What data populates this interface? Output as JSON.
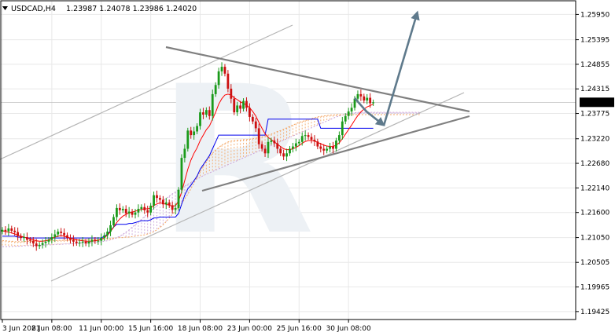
{
  "header": {
    "symbol": "USDCAD,H4",
    "ohlc": "1.23987 1.24078 1.23986 1.24020"
  },
  "watermark": "R",
  "colors": {
    "background": "#ffffff",
    "grid": "#e8e8e8",
    "candle_up": "#1a9a1a",
    "candle_down": "#cc1010",
    "tenkan": "#ff0000",
    "kijun": "#0000ee",
    "cloud_orange": "#f4a460",
    "cloud_purple": "#c8a0d8",
    "channel": "#b4b4b4",
    "triangle": "#808080",
    "arrow": "#5f7a8c",
    "price_tag_bg": "#000000",
    "price_tag_fg": "#ffffff"
  },
  "chart_data": {
    "type": "candlestick",
    "symbol": "USDCAD",
    "timeframe": "H4",
    "ylim": [
      1.1925,
      1.2625
    ],
    "y_ticks": [
      "1.25950",
      "1.25395",
      "1.24855",
      "1.24315",
      "1.23775",
      "1.23220",
      "1.22680",
      "1.22140",
      "1.21600",
      "1.21050",
      "1.20505",
      "1.19965",
      "1.19425"
    ],
    "current_price": "1.24020",
    "x_labels": [
      "3 Jun 2021",
      "8 Jun 08:00",
      "11 Jun 00:00",
      "15 Jun 16:00",
      "18 Jun 08:00",
      "23 Jun 00:00",
      "25 Jun 16:00",
      "30 Jun 08:00"
    ],
    "bars_per_label": 16,
    "close": [
      1.2122,
      1.2119,
      1.2125,
      1.212,
      1.2117,
      1.2108,
      1.2104,
      1.2106,
      1.21,
      1.2098,
      1.2092,
      1.2086,
      1.2089,
      1.2093,
      1.2096,
      1.21,
      1.2106,
      1.2112,
      1.2118,
      1.2115,
      1.211,
      1.2104,
      1.21,
      1.2096,
      1.2093,
      1.2094,
      1.2096,
      1.2092,
      1.2096,
      1.21,
      1.2097,
      1.2098,
      1.2104,
      1.211,
      1.2118,
      1.2132,
      1.215,
      1.217,
      1.2165,
      1.2168,
      1.2158,
      1.2162,
      1.2155,
      1.216,
      1.2168,
      1.2172,
      1.2165,
      1.216,
      1.2175,
      1.2198,
      1.2192,
      1.2188,
      1.2178,
      1.2182,
      1.2176,
      1.2166,
      1.217,
      1.221,
      1.228,
      1.23,
      1.234,
      1.233,
      1.2338,
      1.235,
      1.238,
      1.2375,
      1.2385,
      1.2372,
      1.242,
      1.244,
      1.247,
      1.248,
      1.2465,
      1.2432,
      1.241,
      1.238,
      1.2395,
      1.2388,
      1.2405,
      1.239,
      1.237,
      1.236,
      1.2345,
      1.231,
      1.23,
      1.229,
      1.2315,
      1.2318,
      1.2312,
      1.23,
      1.229,
      1.2283,
      1.229,
      1.23,
      1.2305,
      1.2312,
      1.2315,
      1.2328,
      1.233,
      1.2326,
      1.232,
      1.2316,
      1.2305,
      1.23,
      1.2296,
      1.23,
      1.2305,
      1.23,
      1.2318,
      1.233,
      1.236,
      1.2372,
      1.2382,
      1.239,
      1.241,
      1.242,
      1.2415,
      1.2406,
      1.2412,
      1.24,
      1.2402
    ],
    "tenkan_sen": [
      1.212,
      1.2118,
      1.2117,
      1.2115,
      1.2113,
      1.211,
      1.2108,
      1.2106,
      1.2104,
      1.2102,
      1.21,
      1.2098,
      1.2097,
      1.2097,
      1.2098,
      1.21,
      1.2103,
      1.2106,
      1.2108,
      1.2109,
      1.2108,
      1.2106,
      1.2104,
      1.2102,
      1.21,
      1.2099,
      1.2098,
      1.2097,
      1.2097,
      1.2097,
      1.2098,
      1.2099,
      1.2101,
      1.2105,
      1.211,
      1.2118,
      1.2128,
      1.2138,
      1.2146,
      1.2152,
      1.2156,
      1.2159,
      1.2161,
      1.2163,
      1.2165,
      1.2167,
      1.2168,
      1.2168,
      1.217,
      1.2175,
      1.2179,
      1.2181,
      1.218,
      1.2178,
      1.2176,
      1.2174,
      1.2175,
      1.2185,
      1.2205,
      1.223,
      1.2255,
      1.2275,
      1.229,
      1.2302,
      1.2318,
      1.233,
      1.2342,
      1.235,
      1.2365,
      1.238,
      1.2398,
      1.241,
      1.2418,
      1.242,
      1.2418,
      1.2412,
      1.2408,
      1.2403,
      1.24,
      1.2396,
      1.239,
      1.2382,
      1.2372,
      1.2358,
      1.2345,
      1.2333,
      1.2325,
      1.232,
      1.2315,
      1.231,
      1.2305,
      1.23,
      1.2298,
      1.2298,
      1.23,
      1.2303,
      1.2307,
      1.2312,
      1.2316,
      1.2318,
      1.2318,
      1.2317,
      1.2314,
      1.2311,
      1.2308,
      1.2306,
      1.2305,
      1.2305,
      1.2308,
      1.2313,
      1.2322,
      1.2332,
      1.2342,
      1.2352,
      1.2363,
      1.2373,
      1.2381,
      1.2387,
      1.2392,
      1.2395,
      1.2398
    ],
    "kijun_sen": [
      1.2108,
      1.2108,
      1.2108,
      1.2108,
      1.2108,
      1.2106,
      1.2106,
      1.2106,
      1.2104,
      1.2104,
      1.2104,
      1.2104,
      1.2104,
      1.2104,
      1.2104,
      1.2104,
      1.2104,
      1.2104,
      1.2104,
      1.2104,
      1.2104,
      1.2104,
      1.2104,
      1.2104,
      1.2104,
      1.2104,
      1.2104,
      1.2104,
      1.2104,
      1.2104,
      1.2104,
      1.2104,
      1.2104,
      1.2108,
      1.2112,
      1.212,
      1.2128,
      1.2134,
      1.2134,
      1.2134,
      1.2134,
      1.2136,
      1.2136,
      1.2138,
      1.214,
      1.2142,
      1.2142,
      1.2142,
      1.2144,
      1.2148,
      1.2148,
      1.215,
      1.215,
      1.215,
      1.215,
      1.215,
      1.215,
      1.2158,
      1.2178,
      1.2198,
      1.2212,
      1.222,
      1.223,
      1.224,
      1.2255,
      1.2265,
      1.2275,
      1.2285,
      1.23,
      1.2315,
      1.233,
      1.233,
      1.233,
      1.233,
      1.233,
      1.233,
      1.233,
      1.233,
      1.233,
      1.233,
      1.233,
      1.233,
      1.233,
      1.233,
      1.233,
      1.233,
      1.2365,
      1.2365,
      1.2365,
      1.2365,
      1.2365,
      1.2365,
      1.2365,
      1.2365,
      1.2365,
      1.2365,
      1.2365,
      1.2365,
      1.2365,
      1.2365,
      1.2365,
      1.2365,
      1.2365,
      1.2345,
      1.2345,
      1.2345,
      1.2345,
      1.2345,
      1.2345,
      1.2345,
      1.2345,
      1.2345,
      1.2345,
      1.2345,
      1.2345,
      1.2345,
      1.2345,
      1.2345,
      1.2345,
      1.2345,
      1.2345
    ],
    "span_a": [
      1.2098,
      1.2098,
      1.2097,
      1.2097,
      1.2096,
      1.2096,
      1.2096,
      1.2096,
      1.2097,
      1.2097,
      1.2097,
      1.2097,
      1.2097,
      1.2097,
      1.2098,
      1.2098,
      1.2098,
      1.2098,
      1.2099,
      1.2099,
      1.2099,
      1.2099,
      1.2099,
      1.21,
      1.21,
      1.21,
      1.21,
      1.21,
      1.2101,
      1.2101,
      1.2101,
      1.2101,
      1.2102,
      1.2102,
      1.2103,
      1.2103,
      1.2104,
      1.2104,
      1.2105,
      1.2105,
      1.2106,
      1.2106,
      1.2107,
      1.2108,
      1.2109,
      1.211,
      1.2111,
      1.2113,
      1.2115,
      1.2118,
      1.2122,
      1.2127,
      1.2133,
      1.214,
      1.2148,
      1.2156,
      1.2164,
      1.2172,
      1.218,
      1.219,
      1.22,
      1.2212,
      1.2225,
      1.2238,
      1.225,
      1.2262,
      1.2272,
      1.2282,
      1.229,
      1.2297,
      1.2303,
      1.2308,
      1.2312,
      1.2315,
      1.2317,
      1.2318,
      1.2319,
      1.2319,
      1.232,
      1.232,
      1.2321,
      1.2322,
      1.2323,
      1.2324,
      1.2326,
      1.2328,
      1.233,
      1.2332,
      1.2335,
      1.2338,
      1.234,
      1.2343,
      1.2346,
      1.2349,
      1.2352,
      1.2355,
      1.2358,
      1.236,
      1.2362,
      1.2364,
      1.2366,
      1.2368,
      1.237,
      1.2371,
      1.2372,
      1.2373,
      1.2374,
      1.2374,
      1.2375,
      1.2375,
      1.2375,
      1.2375,
      1.2375,
      1.2375,
      1.2375,
      1.2375,
      1.2375,
      1.2375,
      1.2375,
      1.2375,
      1.2375,
      1.2375,
      1.2375,
      1.2375,
      1.2375,
      1.2375,
      1.2375,
      1.2375,
      1.2375,
      1.2375,
      1.2375,
      1.2375,
      1.2375,
      1.2375,
      1.2375,
      1.2375
    ],
    "span_b": [
      1.2085,
      1.2085,
      1.2085,
      1.2085,
      1.2086,
      1.2086,
      1.2086,
      1.2087,
      1.2087,
      1.2087,
      1.2088,
      1.2088,
      1.2088,
      1.2088,
      1.2089,
      1.2089,
      1.2089,
      1.209,
      1.209,
      1.209,
      1.2091,
      1.2091,
      1.2091,
      1.2092,
      1.2092,
      1.2092,
      1.2093,
      1.2093,
      1.2094,
      1.2094,
      1.2095,
      1.2095,
      1.2096,
      1.2097,
      1.2098,
      1.21,
      1.2102,
      1.2105,
      1.2108,
      1.2112,
      1.2117,
      1.2122,
      1.2128,
      1.2133,
      1.2139,
      1.2145,
      1.2151,
      1.2157,
      1.2163,
      1.2169,
      1.2175,
      1.218,
      1.2186,
      1.2191,
      1.2196,
      1.2201,
      1.2205,
      1.221,
      1.2214,
      1.2218,
      1.2222,
      1.2226,
      1.223,
      1.2234,
      1.2237,
      1.2241,
      1.2244,
      1.2247,
      1.225,
      1.2253,
      1.2256,
      1.2259,
      1.2262,
      1.2265,
      1.2268,
      1.2271,
      1.2274,
      1.2277,
      1.228,
      1.2283,
      1.2286,
      1.2289,
      1.2292,
      1.2295,
      1.2298,
      1.2301,
      1.2304,
      1.2307,
      1.231,
      1.2313,
      1.2316,
      1.2319,
      1.2322,
      1.2325,
      1.2328,
      1.2331,
      1.2334,
      1.2337,
      1.234,
      1.2343,
      1.2346,
      1.2349,
      1.2352,
      1.2355,
      1.2358,
      1.2361,
      1.2364,
      1.2367,
      1.237,
      1.2372,
      1.2374,
      1.2376,
      1.2377,
      1.2378,
      1.2379,
      1.238,
      1.238,
      1.238,
      1.238,
      1.238,
      1.238,
      1.238,
      1.238,
      1.238,
      1.238,
      1.238,
      1.238,
      1.238,
      1.238,
      1.238,
      1.238,
      1.238,
      1.238,
      1.238,
      1.238,
      1.238
    ]
  }
}
